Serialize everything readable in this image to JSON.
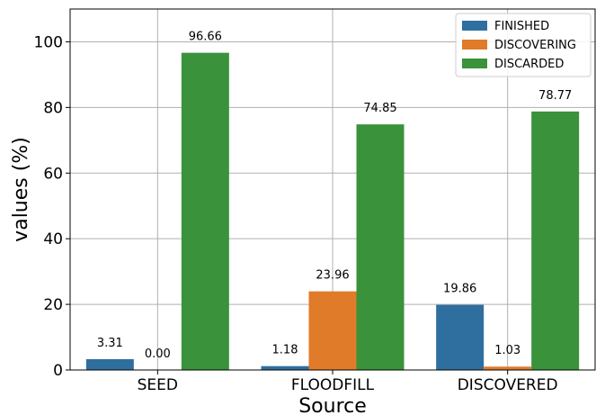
{
  "chart_data": {
    "type": "bar",
    "title": "",
    "xlabel": "Source",
    "ylabel": "values (%)",
    "categories": [
      "SEED",
      "FLOODFILL",
      "DISCOVERED"
    ],
    "series": [
      {
        "name": "FINISHED",
        "color": "#2f6f9f",
        "values": [
          3.31,
          1.18,
          19.86
        ],
        "labels": [
          "3.31",
          "1.18",
          "19.86"
        ]
      },
      {
        "name": "DISCOVERING",
        "color": "#e07b2a",
        "values": [
          0.0,
          23.96,
          1.03
        ],
        "labels": [
          "0.00",
          "23.96",
          "1.03"
        ]
      },
      {
        "name": "DISCARDED",
        "color": "#3a923a",
        "values": [
          96.66,
          74.85,
          78.77
        ],
        "labels": [
          "96.66",
          "74.85",
          "78.77"
        ]
      }
    ],
    "ylim": [
      0,
      110
    ],
    "yticks": [
      0,
      20,
      40,
      60,
      80,
      100
    ],
    "grid": true,
    "legend_position": "top-right"
  }
}
